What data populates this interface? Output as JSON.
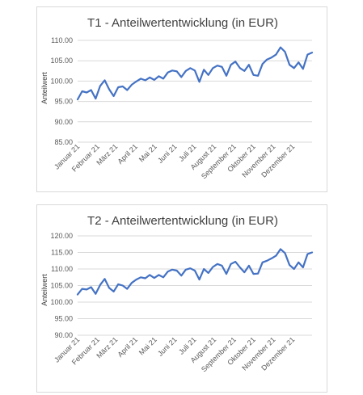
{
  "chart_data": [
    {
      "type": "line",
      "title": "T1  -  Anteilwertentwicklung (in EUR)",
      "ylabel": "Anteilwert",
      "xlabel": "",
      "ylim": [
        85,
        110
      ],
      "yticks": [
        "110.00",
        "105.00",
        "100.00",
        "95.00",
        "90.00",
        "85.00"
      ],
      "yticks_values": [
        110,
        105,
        100,
        95,
        90,
        85
      ],
      "months": [
        "Januar 21",
        "Februar 21",
        "März 21",
        "April 21",
        "Mai 21",
        "Juni 21",
        "Juli 21",
        "August 21",
        "September 21",
        "Oktober 21",
        "November 21",
        "Dezember 21"
      ],
      "grid": true,
      "color": "#4472c4",
      "series": [
        {
          "x": [
            "2021-01-01",
            "2021-01-08",
            "2021-01-15",
            "2021-01-22",
            "2021-01-29",
            "2021-02-05",
            "2021-02-12",
            "2021-02-19",
            "2021-02-26",
            "2021-03-05",
            "2021-03-12",
            "2021-03-19",
            "2021-03-26",
            "2021-04-02",
            "2021-04-09",
            "2021-04-16",
            "2021-04-23",
            "2021-04-30",
            "2021-05-07",
            "2021-05-14",
            "2021-05-21",
            "2021-05-28",
            "2021-06-04",
            "2021-06-11",
            "2021-06-18",
            "2021-06-25",
            "2021-07-02",
            "2021-07-09",
            "2021-07-16",
            "2021-07-23",
            "2021-07-30",
            "2021-08-06",
            "2021-08-13",
            "2021-08-20",
            "2021-08-27",
            "2021-09-03",
            "2021-09-10",
            "2021-09-17",
            "2021-09-24",
            "2021-10-01",
            "2021-10-08",
            "2021-10-15",
            "2021-10-22",
            "2021-10-29",
            "2021-11-05",
            "2021-11-12",
            "2021-11-19",
            "2021-11-26",
            "2021-12-03",
            "2021-12-10",
            "2021-12-17",
            "2021-12-24",
            "2021-12-31"
          ],
          "values": [
            95.5,
            97.5,
            97.2,
            97.8,
            95.7,
            98.8,
            100.2,
            98.0,
            96.3,
            98.5,
            98.7,
            97.8,
            99.1,
            99.9,
            100.6,
            100.2,
            100.9,
            100.3,
            101.2,
            100.6,
            102.1,
            102.6,
            102.4,
            101.0,
            102.5,
            103.2,
            102.6,
            99.8,
            102.8,
            101.5,
            103.2,
            103.8,
            103.5,
            101.3,
            104.0,
            104.8,
            103.2,
            102.5,
            104.0,
            101.5,
            101.3,
            104.2,
            105.3,
            105.8,
            106.5,
            108.3,
            107.2,
            104.0,
            103.2,
            104.6,
            103.0,
            106.5,
            107.0
          ]
        }
      ]
    },
    {
      "type": "line",
      "title": "T2  -  Anteilwertentwicklung (in EUR)",
      "ylabel": "Anteilwert",
      "xlabel": "",
      "ylim": [
        90,
        120
      ],
      "yticks": [
        "120.00",
        "115.00",
        "110.00",
        "105.00",
        "100.00",
        "95.00",
        "90.00"
      ],
      "yticks_values": [
        120,
        115,
        110,
        105,
        100,
        95,
        90
      ],
      "months": [
        "Januar 21",
        "Februar 21",
        "März 21",
        "April 21",
        "Mai 21",
        "Juni 21",
        "Juli 21",
        "August 21",
        "September 21",
        "Oktober 21",
        "November 21",
        "Dezember 21"
      ],
      "grid": true,
      "color": "#4472c4",
      "series": [
        {
          "x": [
            "2021-01-01",
            "2021-01-08",
            "2021-01-15",
            "2021-01-22",
            "2021-01-29",
            "2021-02-05",
            "2021-02-12",
            "2021-02-19",
            "2021-02-26",
            "2021-03-05",
            "2021-03-12",
            "2021-03-19",
            "2021-03-26",
            "2021-04-02",
            "2021-04-09",
            "2021-04-16",
            "2021-04-23",
            "2021-04-30",
            "2021-05-07",
            "2021-05-14",
            "2021-05-21",
            "2021-05-28",
            "2021-06-04",
            "2021-06-11",
            "2021-06-18",
            "2021-06-25",
            "2021-07-02",
            "2021-07-09",
            "2021-07-16",
            "2021-07-23",
            "2021-07-30",
            "2021-08-06",
            "2021-08-13",
            "2021-08-20",
            "2021-08-27",
            "2021-09-03",
            "2021-09-10",
            "2021-09-17",
            "2021-09-24",
            "2021-10-01",
            "2021-10-08",
            "2021-10-15",
            "2021-10-22",
            "2021-10-29",
            "2021-11-05",
            "2021-11-12",
            "2021-11-19",
            "2021-11-26",
            "2021-12-03",
            "2021-12-10",
            "2021-12-17",
            "2021-12-24",
            "2021-12-31"
          ],
          "values": [
            102.3,
            104.0,
            103.8,
            104.5,
            102.5,
            105.2,
            107.0,
            104.3,
            103.2,
            105.4,
            105.0,
            104.0,
            105.8,
            106.8,
            107.5,
            107.2,
            108.2,
            107.3,
            108.2,
            107.5,
            109.2,
            109.8,
            109.5,
            108.0,
            109.8,
            110.2,
            109.5,
            106.8,
            110.0,
            108.8,
            110.6,
            111.5,
            111.0,
            108.5,
            111.5,
            112.2,
            110.5,
            109.0,
            111.0,
            108.5,
            108.6,
            112.0,
            112.5,
            113.2,
            114.0,
            116.0,
            114.8,
            111.2,
            110.0,
            112.0,
            110.5,
            114.5,
            115.0
          ]
        }
      ]
    }
  ]
}
